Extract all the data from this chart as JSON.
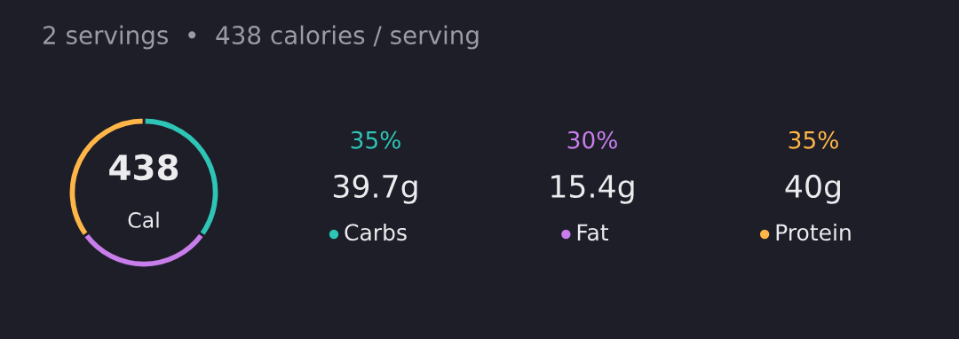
{
  "chart_data": {
    "type": "donut",
    "title": "2 servings  •  438 calories / serving",
    "categories": [
      "Carbs",
      "Fat",
      "Protein"
    ],
    "values": [
      35,
      30,
      35
    ],
    "colors": [
      "#2ec4b6",
      "#c77dea",
      "#ffb547"
    ],
    "annotations": [
      "438",
      "Cal",
      "35%",
      "30%",
      "35%",
      "39.7g",
      "15.4g",
      "40g"
    ],
    "legend": "right"
  }
}
